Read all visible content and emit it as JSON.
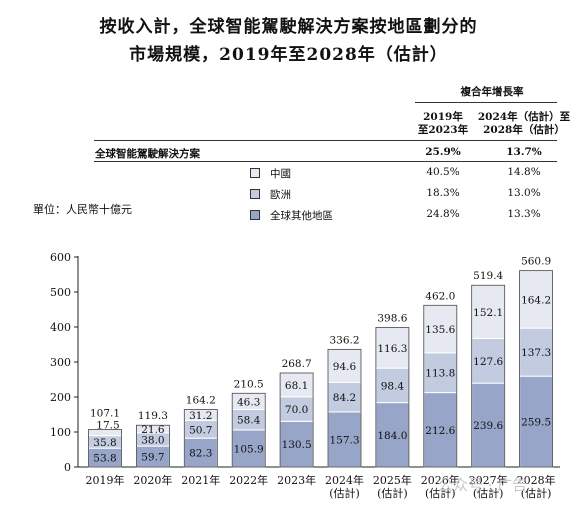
{
  "title_line1": "按收入計，全球智能駕駛解決方案按地區劃分的",
  "title_line2": "市場規模，2019年至2028年（估計）",
  "unit_label": "單位：人民幣十億元",
  "cagr_table": {
    "header": "複合年增長率",
    "col1": [
      "2019年",
      "至2023年"
    ],
    "col2": [
      "2024年（估計）至",
      "2028年（估計）"
    ],
    "rows": [
      {
        "label": "全球智能駕駛解決方案",
        "v1": "25.9%",
        "v2": "13.7%"
      },
      {
        "label": "中國",
        "v1": "40.5%",
        "v2": "14.8%"
      },
      {
        "label": "歐洲",
        "v1": "18.3%",
        "v2": "13.0%"
      },
      {
        "label": "全球其他地區",
        "v1": "24.8%",
        "v2": "13.3%"
      }
    ]
  },
  "colors": {
    "china": "#e6e9f2",
    "europe": "#c3cbe0",
    "rest": "#97a6c8"
  },
  "watermark": "公众号 · 广告",
  "chart_data": {
    "type": "bar",
    "stacked": true,
    "categories": [
      [
        "2019年"
      ],
      [
        "2020年"
      ],
      [
        "2021年"
      ],
      [
        "2022年"
      ],
      [
        "2023年"
      ],
      [
        "2024年",
        "(估計)"
      ],
      [
        "2025年",
        "(估計)"
      ],
      [
        "2026年",
        "(估計)"
      ],
      [
        "2027年",
        "(估計)"
      ],
      [
        "2028年",
        "(估計)"
      ]
    ],
    "series": [
      {
        "name": "全球其他地區",
        "values": [
          53.8,
          59.7,
          82.3,
          105.9,
          130.5,
          157.3,
          184.0,
          212.6,
          239.6,
          259.5
        ]
      },
      {
        "name": "歐洲",
        "values": [
          35.8,
          38.0,
          50.7,
          58.4,
          70.0,
          84.2,
          98.4,
          113.8,
          127.6,
          137.3
        ]
      },
      {
        "name": "中國",
        "values": [
          17.5,
          21.6,
          31.2,
          46.3,
          68.1,
          94.6,
          116.3,
          135.6,
          152.1,
          164.2
        ]
      }
    ],
    "labels": [
      [
        "53.8",
        "35.8",
        "17.5"
      ],
      [
        "59.7",
        "38.0",
        "21.6"
      ],
      [
        "82.3",
        "50.7",
        "31.2"
      ],
      [
        "105.9",
        "58.4",
        "46.3"
      ],
      [
        "130.5",
        "70.0",
        "68.1"
      ],
      [
        "157.3",
        "84.2",
        "94.6"
      ],
      [
        "184.0",
        "98.4",
        "116.3"
      ],
      [
        "212.6",
        "113.8",
        "135.6"
      ],
      [
        "239.6",
        "127.6",
        "152.1"
      ],
      [
        "259.5",
        "137.3",
        "164.2"
      ]
    ],
    "totals": [
      "107.1",
      "119.3",
      "164.2",
      "210.5",
      "268.7",
      "336.2",
      "398.6",
      "462.0",
      "519.4",
      "560.9"
    ],
    "yticks": [
      "0",
      "100",
      "200",
      "300",
      "400",
      "500",
      "600"
    ],
    "ylim": [
      0,
      600
    ],
    "grid": false
  }
}
